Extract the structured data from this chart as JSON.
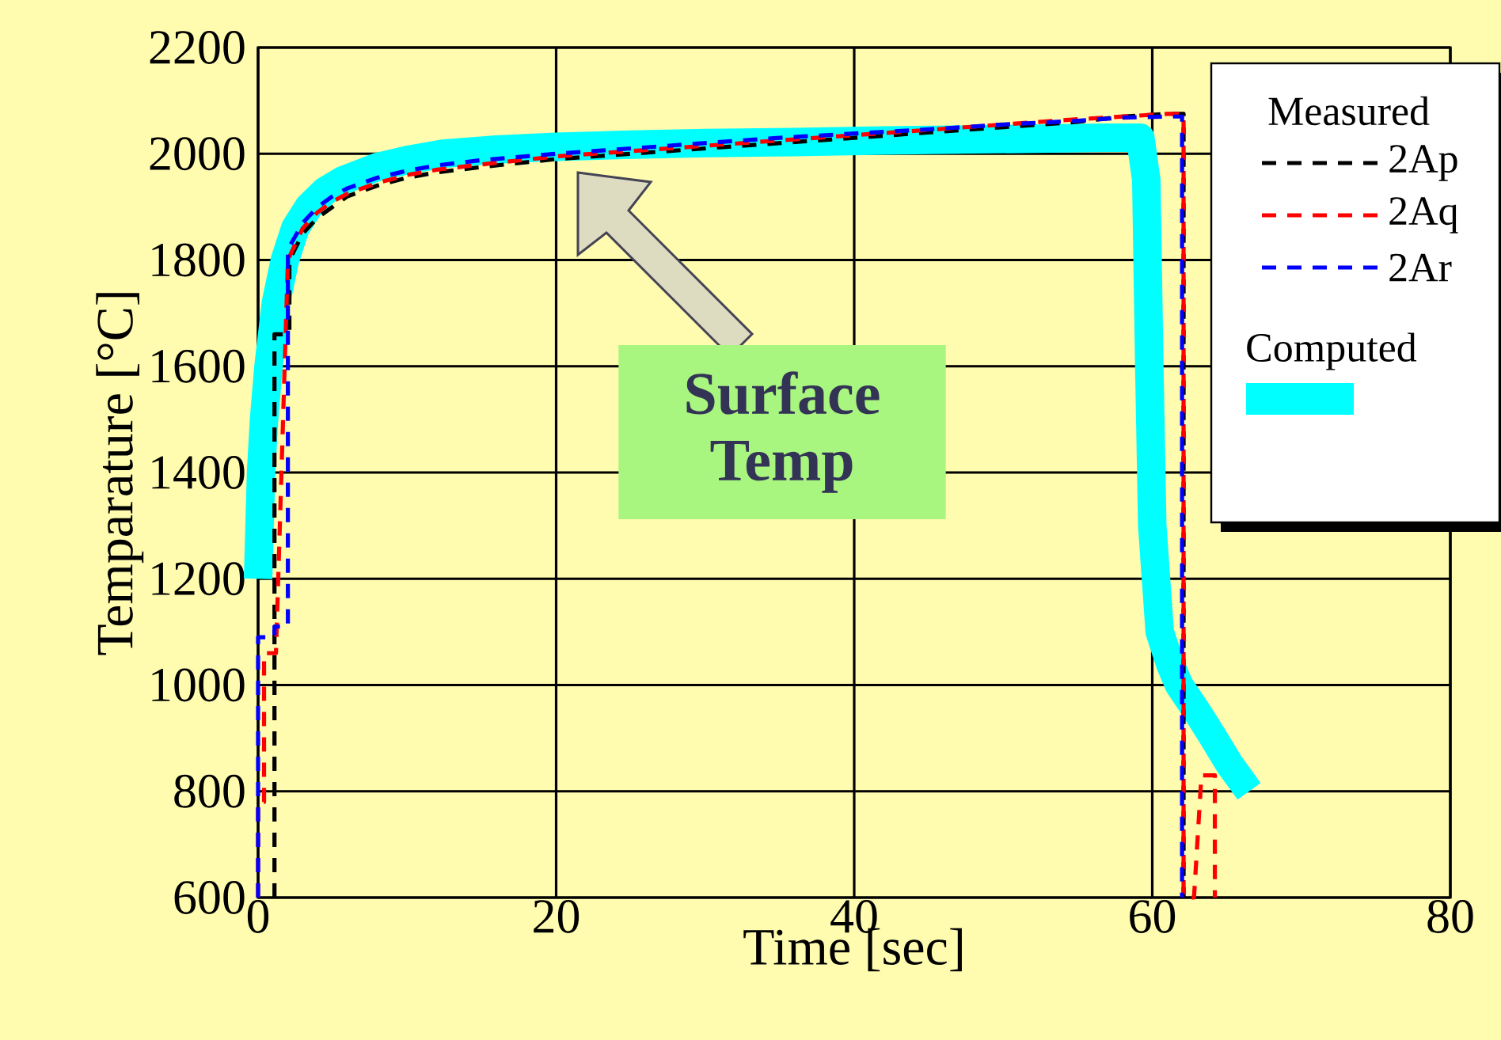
{
  "chart_data": {
    "type": "line",
    "xlabel": "Time [sec]",
    "ylabel": "Temparature [°C]",
    "legend_title": "Measured",
    "xlim": [
      0,
      80
    ],
    "ylim": [
      600,
      2200
    ],
    "xticks": [
      0,
      20,
      40,
      60,
      80
    ],
    "yticks": [
      600,
      800,
      1000,
      1200,
      1400,
      1600,
      1800,
      2000,
      2200
    ],
    "grid": true,
    "legend": "top right",
    "marker": "none",
    "annotations": [
      "Surface Temp"
    ],
    "series": [
      {
        "name": "2Ap",
        "color": "#000000",
        "line_style": "dashed",
        "x": [
          1.1,
          1.1,
          1.3,
          2.1,
          2.1,
          3,
          4,
          5,
          6,
          7,
          8,
          10,
          12,
          15,
          20,
          25,
          30,
          35,
          40,
          45,
          50,
          55,
          58,
          61,
          62.1,
          62.1
        ],
        "values": [
          600,
          1660,
          1660,
          1660,
          1800,
          1850,
          1880,
          1900,
          1920,
          1930,
          1940,
          1955,
          1965,
          1975,
          1990,
          2000,
          2010,
          2020,
          2030,
          2040,
          2050,
          2060,
          2070,
          2075,
          2075,
          600
        ]
      },
      {
        "name": "2Aq",
        "color": "#ff0000",
        "line_style": "dashed",
        "x": [
          0,
          0,
          0.4,
          0.4,
          1.1,
          1.2,
          2.0,
          3,
          4,
          5,
          6,
          8,
          10,
          12,
          15,
          20,
          25,
          30,
          35,
          40,
          45,
          50,
          55,
          58,
          61,
          62.1,
          62.1,
          62.8,
          63.3,
          64.2,
          64.2
        ],
        "values": [
          600,
          780,
          780,
          1060,
          1060,
          1060,
          1800,
          1860,
          1890,
          1910,
          1925,
          1945,
          1960,
          1970,
          1980,
          1995,
          2005,
          2015,
          2025,
          2035,
          2045,
          2055,
          2065,
          2070,
          2075,
          2075,
          600,
          600,
          830,
          830,
          600
        ]
      },
      {
        "name": "2Ar",
        "color": "#0000ff",
        "line_style": "dashed",
        "x": [
          0,
          0,
          1.1,
          1.1,
          2.0,
          2.0,
          3,
          4,
          5,
          6,
          8,
          10,
          12,
          15,
          20,
          25,
          30,
          35,
          40,
          45,
          50,
          55,
          58,
          61,
          62.0,
          62.0
        ],
        "values": [
          600,
          1090,
          1090,
          1110,
          1110,
          1820,
          1870,
          1900,
          1920,
          1935,
          1955,
          1968,
          1978,
          1988,
          2000,
          2010,
          2020,
          2030,
          2038,
          2046,
          2055,
          2062,
          2068,
          2070,
          2070,
          600
        ]
      },
      {
        "name": "Computed",
        "color": "#00ffff",
        "line_style": "solid",
        "x": [
          0,
          0.2,
          0.4,
          0.7,
          1.2,
          1.8,
          2.5,
          3.4,
          4.5,
          5.7,
          8,
          10,
          12.4,
          16,
          20,
          25,
          30,
          36,
          42,
          48,
          54,
          57,
          59.2,
          59.6,
          59.8,
          60.0,
          60.5,
          61.2,
          61.8,
          63.0,
          63.9,
          65.2,
          66.5
        ],
        "values": [
          1200,
          1400,
          1500,
          1600,
          1720,
          1800,
          1860,
          1900,
          1930,
          1950,
          1975,
          1988,
          2000,
          2008,
          2013,
          2017,
          2020,
          2022,
          2025,
          2027,
          2029,
          2030,
          2030,
          1950,
          1600,
          1300,
          1100,
          1040,
          1000,
          950,
          910,
          850,
          800
        ]
      }
    ]
  }
}
